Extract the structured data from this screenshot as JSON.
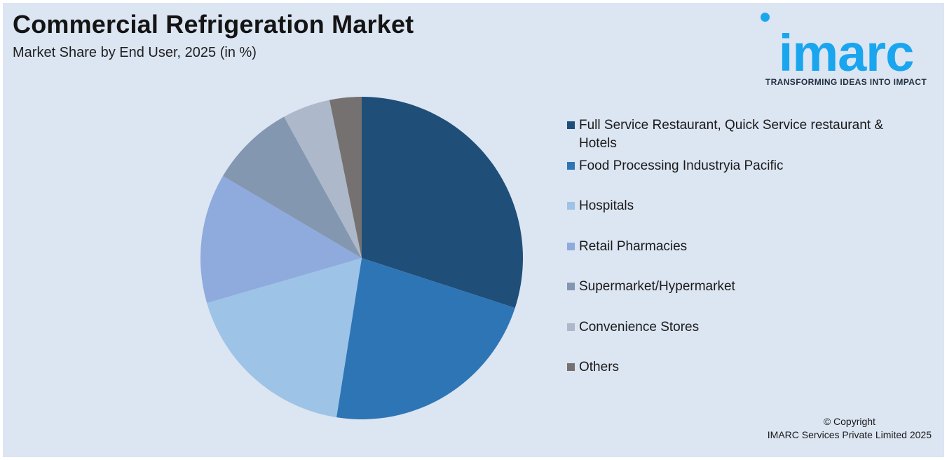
{
  "header": {
    "title": "Commercial Refrigeration Market",
    "subtitle": "Market Share by End User, 2025 (in %)"
  },
  "logo": {
    "word": "imarc",
    "tagline": "TRANSFORMING IDEAS INTO IMPACT",
    "color": "#1aa6ef"
  },
  "chart_data": {
    "type": "pie",
    "title": "Commercial Refrigeration Market",
    "subtitle": "Market Share by End User, 2025 (in %)",
    "start": "12 o'clock, clockwise",
    "legend_position": "right",
    "slices": [
      {
        "label": "Full Service Restaurant, Quick Service restaurant & Hotels",
        "value": 30.0,
        "color": "#1f4e79"
      },
      {
        "label": "Food Processing Industryia Pacific",
        "value": 22.5,
        "color": "#2e75b6"
      },
      {
        "label": "Hospitals",
        "value": 18.0,
        "color": "#9dc3e6"
      },
      {
        "label": "Retail Pharmacies",
        "value": 13.0,
        "color": "#8faadc"
      },
      {
        "label": "Supermarket/Hypermarket",
        "value": 8.5,
        "color": "#8497b0"
      },
      {
        "label": "Convenience Stores",
        "value": 4.8,
        "color": "#adb9ca"
      },
      {
        "label": "Others",
        "value": 3.2,
        "color": "#767171"
      }
    ]
  },
  "footer": {
    "copyright_line1": "© Copyright",
    "copyright_line2": "IMARC Services Private Limited 2025"
  }
}
